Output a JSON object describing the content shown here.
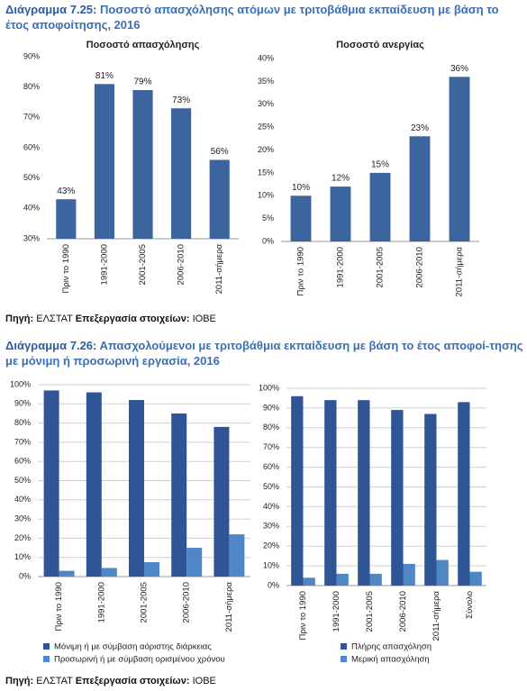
{
  "figures": [
    {
      "label": "Διάγραμμα 7.25:",
      "title": "Ποσοστό απασχόλησης ατόμων με τριτοβάθμια εκπαίδευση με βάση το έτος αποφοίτησης, 2016"
    },
    {
      "label": "Διάγραμμα 7.26:",
      "title": "Απασχολούμενοι με τριτοβάθμια εκπαίδευση με βάση το έτος αποφοί-τησης με μόνιμη ή προσωρινή εργασία, 2016"
    }
  ],
  "sources": [
    {
      "label": "Πηγή:",
      "agency": "ΕΛΣΤΑΤ",
      "processing_label": "Επεξεργασία στοιχείων:",
      "processor": "IOBE"
    },
    {
      "label": "Πηγή:",
      "agency": "ΕΛΣΤΑΤ",
      "processing_label": "Επεξεργασία στοιχείων:",
      "processor": "IOBE"
    }
  ],
  "chart_data": [
    {
      "type": "bar",
      "title": "Ποσοστό απασχόλησης",
      "categories": [
        "Πριν το 1990",
        "1991-2000",
        "2001-2005",
        "2006-2010",
        "2011-σήμερα"
      ],
      "values": [
        43,
        81,
        79,
        73,
        56
      ],
      "value_labels": [
        "43%",
        "81%",
        "79%",
        "73%",
        "56%"
      ],
      "color": "#3c649f",
      "ylim": [
        30,
        90
      ],
      "yticks": [
        {
          "value": 30,
          "label": "30%"
        },
        {
          "value": 40,
          "label": "40%"
        },
        {
          "value": 50,
          "label": "50%"
        },
        {
          "value": 60,
          "label": "60%"
        },
        {
          "value": 70,
          "label": "70%"
        },
        {
          "value": 80,
          "label": "80%"
        },
        {
          "value": 90,
          "label": "90%"
        }
      ],
      "grid": false
    },
    {
      "type": "bar",
      "title": "Ποσοστό ανεργίας",
      "categories": [
        "Πριν το 1990",
        "1991-2000",
        "2001-2005",
        "2006-2010",
        "2011-σήμερα"
      ],
      "values": [
        10,
        12,
        15,
        23,
        36
      ],
      "value_labels": [
        "10%",
        "12%",
        "15%",
        "23%",
        "36%"
      ],
      "color": "#3c649f",
      "ylim": [
        0,
        40
      ],
      "yticks": [
        {
          "value": 0,
          "label": "0%"
        },
        {
          "value": 5,
          "label": "5%"
        },
        {
          "value": 10,
          "label": "10%"
        },
        {
          "value": 15,
          "label": "15%"
        },
        {
          "value": 20,
          "label": "20%"
        },
        {
          "value": 25,
          "label": "25%"
        },
        {
          "value": 30,
          "label": "30%"
        },
        {
          "value": 35,
          "label": "35%"
        },
        {
          "value": 40,
          "label": "40%"
        }
      ],
      "grid": false
    },
    {
      "type": "grouped-bar",
      "categories": [
        "Πριν το 1990",
        "1991-2000",
        "2001-2005",
        "2006-2010",
        "2011-σήμερα"
      ],
      "series": [
        {
          "name": "Μόνιμη ή με σύμβαση αόριστης διάρκειας",
          "color": "#2f5596",
          "values": [
            97,
            96,
            92,
            85,
            78
          ]
        },
        {
          "name": "Προσωρινή ή με σύμβαση ορισμένου χρόνου",
          "color": "#4f86c6",
          "values": [
            3,
            4.5,
            7.5,
            15,
            22
          ]
        }
      ],
      "ylim": [
        0,
        100
      ],
      "yticks": [
        {
          "value": 0,
          "label": "0%"
        },
        {
          "value": 10,
          "label": "10%"
        },
        {
          "value": 20,
          "label": "20%"
        },
        {
          "value": 30,
          "label": "30%"
        },
        {
          "value": 40,
          "label": "40%"
        },
        {
          "value": 50,
          "label": "50%"
        },
        {
          "value": 60,
          "label": "60%"
        },
        {
          "value": 70,
          "label": "70%"
        },
        {
          "value": 80,
          "label": "80%"
        },
        {
          "value": 90,
          "label": "90%"
        },
        {
          "value": 100,
          "label": "100%"
        }
      ],
      "grid": true
    },
    {
      "type": "grouped-bar",
      "categories": [
        "Πριν το 1990",
        "1991-2000",
        "2001-2005",
        "2006-2010",
        "2011-σήμερα",
        "Σύνολο"
      ],
      "series": [
        {
          "name": "Πλήρης απασχόληση",
          "color": "#2f5596",
          "values": [
            96,
            94,
            94,
            89,
            87,
            93
          ]
        },
        {
          "name": "Μερική απασχόληση",
          "color": "#4f86c6",
          "values": [
            4,
            6,
            6,
            11,
            13,
            7
          ]
        }
      ],
      "ylim": [
        0,
        100
      ],
      "yticks": [
        {
          "value": 0,
          "label": "0%"
        },
        {
          "value": 10,
          "label": "10%"
        },
        {
          "value": 20,
          "label": "20%"
        },
        {
          "value": 30,
          "label": "30%"
        },
        {
          "value": 40,
          "label": "40%"
        },
        {
          "value": 50,
          "label": "50%"
        },
        {
          "value": 60,
          "label": "60%"
        },
        {
          "value": 70,
          "label": "70%"
        },
        {
          "value": 80,
          "label": "80%"
        },
        {
          "value": 90,
          "label": "90%"
        },
        {
          "value": 100,
          "label": "100%"
        }
      ],
      "grid": true
    }
  ]
}
